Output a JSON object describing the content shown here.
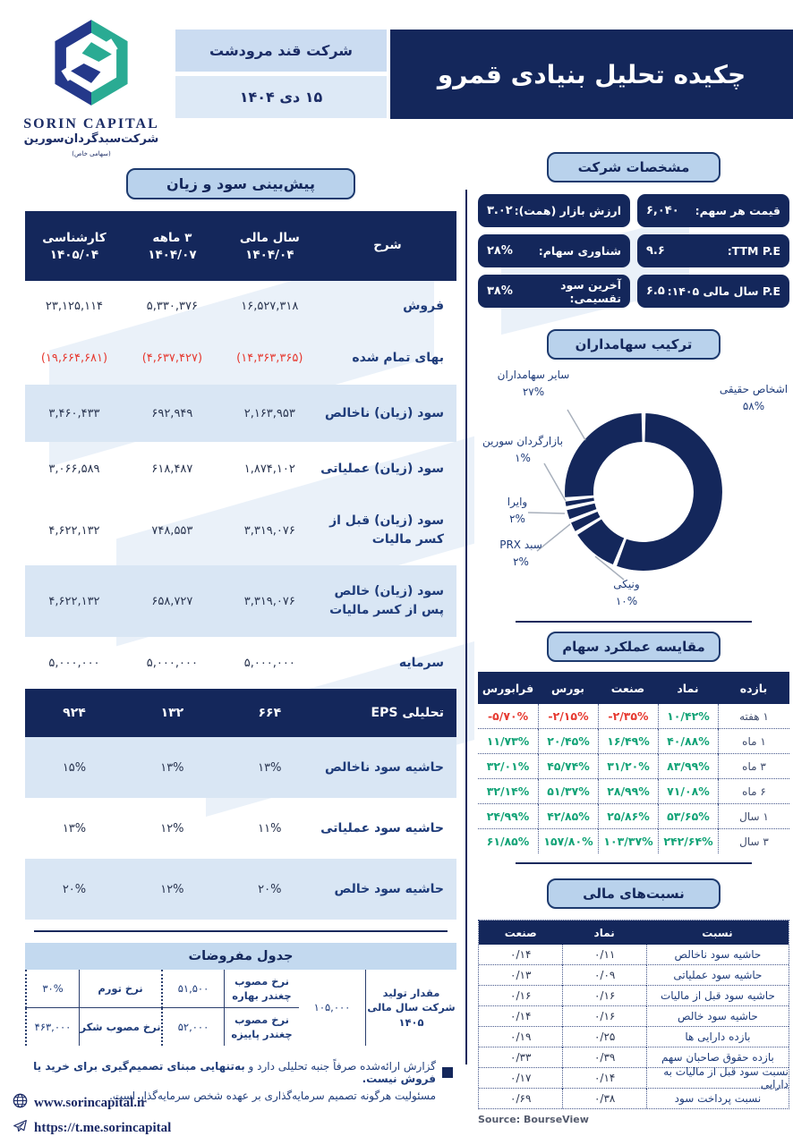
{
  "header": {
    "logo_name": "SORIN CAPITAL",
    "logo_subtitle": "شرکت‌سبدگردان‌سورین",
    "logo_subtitle_small": "(سهامی خاص)",
    "company_box": "شرکت قند مرودشت",
    "date_box": "۱۵ دی ۱۴۰۴",
    "title": "چکیده تحلیل بنیادی قمرو"
  },
  "sections": {
    "pl_title": "پیش‌بینی سود و زیان",
    "specs_title": "مشخصات شرکت",
    "shareholders_title": "ترکیب سهامداران",
    "performance_title": "مقایسه عملکرد سهام",
    "ratios_title": "نسبت‌های مالی",
    "assumptions_title": "جدول مفروضات"
  },
  "specs": {
    "items": [
      {
        "label": "قیمت هر سهم:",
        "value": "۶,۰۴۰"
      },
      {
        "label": "ارزش بازار (همت):",
        "value": "۳.۰۲"
      },
      {
        "label": "TTM P.E:",
        "value": "۹.۶"
      },
      {
        "label": "شناوری سهام:",
        "value": "۲۸%"
      },
      {
        "label": "P.E سال مالی ۱۴۰۵:",
        "value": "۶.۵"
      },
      {
        "label": "آخرین سود تقسیمی:",
        "value": "۳۸%"
      }
    ]
  },
  "pl_table": {
    "columns": [
      {
        "l1": "شرح",
        "l2": ""
      },
      {
        "l1": "سال مالی",
        "l2": "۱۴۰۴/۰۴"
      },
      {
        "l1": "۳ ماهه",
        "l2": "۱۴۰۴/۰۷"
      },
      {
        "l1": "کارشناسی",
        "l2": "۱۴۰۵/۰۴"
      }
    ],
    "rows": [
      {
        "label": "فروش",
        "values": [
          "۱۶,۵۲۷,۳۱۸",
          "۵,۳۳۰,۳۷۶",
          "۲۳,۱۲۵,۱۱۴"
        ]
      },
      {
        "label": "بهای تمام شده",
        "values": [
          "(۱۴,۳۶۳,۳۶۵)",
          "(۴,۶۳۷,۴۲۷)",
          "(۱۹,۶۶۴,۶۸۱)"
        ],
        "negative": true
      },
      {
        "label": "سود (زیان) ناخالص",
        "values": [
          "۲,۱۶۳,۹۵۳",
          "۶۹۲,۹۴۹",
          "۳,۴۶۰,۴۳۳"
        ],
        "highlight": true
      },
      {
        "label": "سود (زیان) عملیاتی",
        "values": [
          "۱,۸۷۴,۱۰۲",
          "۶۱۸,۴۸۷",
          "۳,۰۶۶,۵۸۹"
        ]
      },
      {
        "label": "سود (زیان) قبل از کسر مالیات",
        "values": [
          "۳,۳۱۹,۰۷۶",
          "۷۴۸,۵۵۳",
          "۴,۶۲۲,۱۳۲"
        ]
      },
      {
        "label": "سود (زیان) خالص پس از کسر مالیات",
        "values": [
          "۳,۳۱۹,۰۷۶",
          "۶۵۸,۷۲۷",
          "۴,۶۲۲,۱۳۲"
        ],
        "highlight": true
      },
      {
        "label": "سرمایه",
        "values": [
          "۵,۰۰۰,۰۰۰",
          "۵,۰۰۰,۰۰۰",
          "۵,۰۰۰,۰۰۰"
        ]
      },
      {
        "label": "تحلیلی EPS",
        "values": [
          "۶۶۴",
          "۱۳۲",
          "۹۲۴"
        ],
        "eps": true
      },
      {
        "label": "حاشیه سود ناخالص",
        "values": [
          "۱۳%",
          "۱۳%",
          "۱۵%"
        ],
        "highlight": true
      },
      {
        "label": "حاشیه سود عملیاتی",
        "values": [
          "۱۱%",
          "۱۲%",
          "۱۳%"
        ]
      },
      {
        "label": "حاشیه سود خالص",
        "values": [
          "۲۰%",
          "۱۲%",
          "۲۰%"
        ],
        "highlight": true
      }
    ]
  },
  "chart_data": {
    "type": "pie",
    "title": "ترکیب سهامداران",
    "donut": true,
    "color": "#14275b",
    "slices": [
      {
        "label": "اشخاص حقیقی",
        "pct": "۵۸%",
        "value": 58
      },
      {
        "label": "ونیکی",
        "pct": "۱۰%",
        "value": 10
      },
      {
        "label": "سبد PRX",
        "pct": "۲%",
        "value": 2
      },
      {
        "label": "وایرا",
        "pct": "۲%",
        "value": 2
      },
      {
        "label": "بازارگردان سورین",
        "pct": "۱%",
        "value": 1
      },
      {
        "label": "سایر سهامداران",
        "pct": "۲۷%",
        "value": 27
      }
    ]
  },
  "performance": {
    "columns": [
      "بازده",
      "نماد",
      "صنعت",
      "بورس",
      "فرابورس"
    ],
    "rows": [
      {
        "period": "۱ هفته",
        "values": [
          {
            "v": "۱۰/۴۲%",
            "neg": false
          },
          {
            "v": "-۲/۳۵%",
            "neg": true
          },
          {
            "v": "-۲/۱۵%",
            "neg": true
          },
          {
            "v": "-۵/۷۰%",
            "neg": true
          }
        ]
      },
      {
        "period": "۱ ماه",
        "values": [
          {
            "v": "۴۰/۸۸%",
            "neg": false
          },
          {
            "v": "۱۶/۴۹%",
            "neg": false
          },
          {
            "v": "۲۰/۴۵%",
            "neg": false
          },
          {
            "v": "۱۱/۷۳%",
            "neg": false
          }
        ]
      },
      {
        "period": "۳ ماه",
        "values": [
          {
            "v": "۸۳/۹۹%",
            "neg": false
          },
          {
            "v": "۳۱/۲۰%",
            "neg": false
          },
          {
            "v": "۴۵/۷۴%",
            "neg": false
          },
          {
            "v": "۳۲/۰۱%",
            "neg": false
          }
        ]
      },
      {
        "period": "۶ ماه",
        "values": [
          {
            "v": "۷۱/۰۸%",
            "neg": false
          },
          {
            "v": "۲۸/۹۹%",
            "neg": false
          },
          {
            "v": "۵۱/۳۷%",
            "neg": false
          },
          {
            "v": "۳۲/۱۴%",
            "neg": false
          }
        ]
      },
      {
        "period": "۱ سال",
        "values": [
          {
            "v": "۵۳/۶۵%",
            "neg": false
          },
          {
            "v": "۲۵/۸۶%",
            "neg": false
          },
          {
            "v": "۴۲/۸۵%",
            "neg": false
          },
          {
            "v": "۲۴/۹۹%",
            "neg": false
          }
        ]
      },
      {
        "period": "۳ سال",
        "values": [
          {
            "v": "۲۴۲/۶۴%",
            "neg": false
          },
          {
            "v": "۱۰۳/۳۷%",
            "neg": false
          },
          {
            "v": "۱۵۷/۸۰%",
            "neg": false
          },
          {
            "v": "۶۱/۸۵%",
            "neg": false
          }
        ]
      }
    ]
  },
  "ratios": {
    "columns": [
      "نسبت",
      "نماد",
      "صنعت"
    ],
    "rows": [
      {
        "label": "حاشیه سود ناخالص",
        "values": [
          "۰/۱۱",
          "۰/۱۴"
        ]
      },
      {
        "label": "حاشیه سود عملیاتی",
        "values": [
          "۰/۰۹",
          "۰/۱۳"
        ]
      },
      {
        "label": "حاشیه سود قبل از مالیات",
        "values": [
          "۰/۱۶",
          "۰/۱۶"
        ]
      },
      {
        "label": "حاشیه سود خالص",
        "values": [
          "۰/۱۶",
          "۰/۱۴"
        ]
      },
      {
        "label": "بازده دارایی ها",
        "values": [
          "۰/۲۵",
          "۰/۱۹"
        ]
      },
      {
        "label": "بازده حقوق صاحبان سهم",
        "values": [
          "۰/۳۹",
          "۰/۳۳"
        ]
      },
      {
        "label": "نسبت سود قبل از مالیات به دارایی",
        "values": [
          "۰/۱۴",
          "۰/۱۷"
        ]
      },
      {
        "label": "نسبت پرداخت سود",
        "values": [
          "۰/۳۸",
          "۰/۶۹"
        ]
      }
    ],
    "source": "Source: BourseView"
  },
  "assumptions": {
    "rows": [
      {
        "label_a": "نرخ مصوب چغندر بهاره",
        "value_a": "۵۱,۵۰۰",
        "label_b": "نرخ تورم",
        "value_b": "۳۰%"
      },
      {
        "label_a": "نرخ مصوب چغندر پاییزه",
        "value_a": "۵۲,۰۰۰",
        "label_b": "نرخ مصوب شکر",
        "value_b": "۴۶۳,۰۰۰"
      }
    ],
    "production_label": "مقدار تولید شرکت سال مالی ۱۴۰۵",
    "production_value": "۱۰۵,۰۰۰"
  },
  "notes": {
    "note1_prefix": "گزارش ارائه‌شده صرفاً جنبه تحلیلی دارد و ",
    "note1_bold": "به‌تنهایی مبنای تصمیم‌گیری برای خرید یا فروش نیست.",
    "note2": "مسئولیت هرگونه تصمیم سرمایه‌گذاری بر عهده شخص سرمایه‌گذار است."
  },
  "links": {
    "website": "www.sorincapital.ir",
    "telegram": "https://t.me.sorincapital"
  },
  "colors": {
    "navy": "#14275b",
    "light_blue": "#b9d2ec",
    "row_highlight": "#d9e6f4",
    "negative_red": "#e63a31",
    "positive_green": "#13a377",
    "logo_teal": "#2aab93"
  }
}
